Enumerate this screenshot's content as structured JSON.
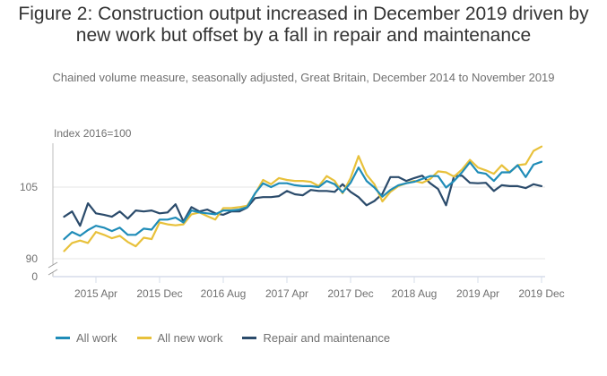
{
  "title": "Figure 2: Construction output increased in December 2019 driven by new work but offset by a fall in repair and maintenance",
  "subtitle": "Chained volume measure, seasonally adjusted, Great Britain, December 2014 to November 2019",
  "chart_data": {
    "type": "line",
    "title": "Figure 2: Construction output increased in December 2019 driven by new work but offset by a fall in repair and maintenance",
    "subtitle": "Chained volume measure, seasonally adjusted, Great Britain, December 2014 to November 2019",
    "ylabel": "Index 2016=100",
    "xlabel": "",
    "y_ticks": [
      0,
      90,
      105
    ],
    "y_axis_break": "between 0 and 90",
    "ylim_display": [
      90,
      115
    ],
    "x_start": "2014 Dec",
    "x_end": "2019 Dec",
    "x_tick_labels": [
      "2015 Apr",
      "2015 Dec",
      "2016 Aug",
      "2017 Apr",
      "2017 Dec",
      "2018 Aug",
      "2019 Apr",
      "2019 Dec"
    ],
    "x_tick_month_index": [
      4,
      12,
      20,
      28,
      36,
      44,
      52,
      60
    ],
    "grid": "horizontal",
    "legend_position": "bottom-left",
    "series": [
      {
        "name": "All work",
        "color": "#1f8cb8",
        "values": [
          94.1,
          95.6,
          94.8,
          96.0,
          96.9,
          96.5,
          95.8,
          96.5,
          95.0,
          95.0,
          96.3,
          96.1,
          98.2,
          98.2,
          98.6,
          97.6,
          100.1,
          99.7,
          99.5,
          99.3,
          100.1,
          100.1,
          100.3,
          100.8,
          103.7,
          105.8,
          105.0,
          105.8,
          105.8,
          105.4,
          105.2,
          105.2,
          105.0,
          106.3,
          105.6,
          103.9,
          105.9,
          109.1,
          106.3,
          104.9,
          103.0,
          104.4,
          105.4,
          105.8,
          106.1,
          106.7,
          107.3,
          107.3,
          104.9,
          106.3,
          108.1,
          110.2,
          108.1,
          107.8,
          106.3,
          108.1,
          108.1,
          109.6,
          107.1,
          109.7,
          110.3
        ]
      },
      {
        "name": "All new work",
        "color": "#e8c13b",
        "values": [
          91.6,
          93.3,
          93.8,
          93.3,
          95.6,
          95.0,
          94.3,
          94.8,
          93.5,
          92.6,
          94.4,
          94.1,
          97.6,
          97.2,
          97.0,
          97.2,
          99.3,
          99.7,
          98.9,
          98.2,
          100.6,
          100.6,
          100.8,
          101.1,
          103.6,
          106.5,
          105.6,
          106.9,
          106.5,
          106.3,
          106.3,
          106.1,
          105.2,
          107.3,
          106.3,
          103.7,
          106.9,
          111.5,
          107.6,
          105.6,
          102.0,
          104.0,
          105.2,
          105.8,
          106.3,
          105.9,
          106.7,
          108.3,
          108.1,
          107.2,
          108.7,
          110.7,
          109.1,
          108.5,
          107.8,
          109.6,
          108.1,
          109.6,
          109.8,
          112.6,
          113.5
        ]
      },
      {
        "name": "Repair and maintenance",
        "color": "#2b4b6b",
        "values": [
          98.8,
          99.9,
          96.9,
          101.6,
          99.5,
          99.2,
          98.8,
          99.9,
          98.4,
          100.1,
          99.9,
          100.1,
          99.5,
          99.7,
          101.4,
          97.8,
          100.8,
          99.9,
          100.3,
          99.5,
          99.2,
          99.9,
          99.9,
          100.7,
          102.7,
          102.9,
          102.9,
          103.1,
          104.2,
          103.5,
          103.3,
          104.4,
          104.2,
          104.2,
          104.0,
          105.6,
          104.0,
          102.9,
          101.2,
          102.1,
          103.6,
          107.1,
          107.1,
          106.3,
          106.9,
          107.4,
          105.8,
          104.6,
          101.2,
          107.3,
          107.4,
          105.9,
          105.8,
          105.9,
          104.2,
          105.4,
          105.2,
          105.2,
          104.8,
          105.6,
          105.2
        ]
      }
    ]
  },
  "axis": {
    "y_title": "Index 2016=100",
    "y_labels": [
      "105",
      "90",
      "0"
    ],
    "x_labels": [
      "2015 Apr",
      "2015 Dec",
      "2016 Aug",
      "2017 Apr",
      "2017 Dec",
      "2018 Aug",
      "2019 Apr",
      "2019 Dec"
    ]
  },
  "legend": [
    {
      "label": "All work",
      "color": "#1f8cb8"
    },
    {
      "label": "All new work",
      "color": "#e8c13b"
    },
    {
      "label": "Repair and maintenance",
      "color": "#2b4b6b"
    }
  ]
}
